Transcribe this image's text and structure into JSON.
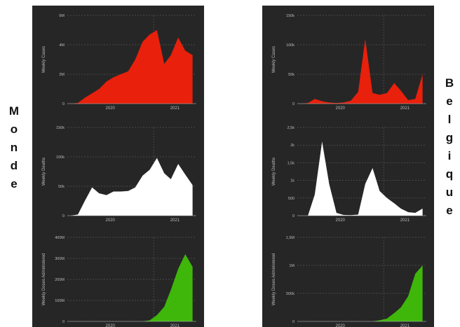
{
  "labels": {
    "left": "Monde",
    "right": "Belgique"
  },
  "colors": {
    "background": "#262626",
    "cases": "#e8200c",
    "deaths": "#ffffff",
    "doses": "#3fb60a",
    "axis_text": "#bdbdbd",
    "grid": "#6a6a6a"
  },
  "chart_data": [
    {
      "type": "area",
      "region": "Monde",
      "metric": "cases",
      "ylabel": "Weekly Cases",
      "x_ticks": [
        "2020",
        "2021"
      ],
      "y_ticks": [
        "0",
        "2M",
        "4M",
        "6M"
      ],
      "ylim": [
        0,
        6000000
      ],
      "xlim": [
        "2020-01-01",
        "2021-07-01"
      ],
      "grid": true,
      "x": [
        "2020-01-15",
        "2020-02-15",
        "2020-03-15",
        "2020-04-15",
        "2020-05-15",
        "2020-06-15",
        "2020-07-15",
        "2020-08-15",
        "2020-09-15",
        "2020-10-15",
        "2020-11-15",
        "2020-12-15",
        "2021-01-15",
        "2021-02-15",
        "2021-03-15",
        "2021-04-15",
        "2021-05-15",
        "2021-06-15"
      ],
      "values": [
        0,
        50000,
        400000,
        700000,
        1000000,
        1500000,
        1800000,
        2000000,
        2200000,
        3000000,
        4200000,
        4700000,
        5000000,
        2700000,
        3300000,
        4500000,
        3600000,
        3300000
      ]
    },
    {
      "type": "area",
      "region": "Monde",
      "metric": "deaths",
      "ylabel": "Weekly Deaths",
      "x_ticks": [
        "2020",
        "2021"
      ],
      "y_ticks": [
        "0",
        "50k",
        "100k",
        "150k"
      ],
      "ylim": [
        0,
        150000
      ],
      "xlim": [
        "2020-01-01",
        "2021-07-01"
      ],
      "grid": true,
      "x": [
        "2020-01-15",
        "2020-02-15",
        "2020-03-15",
        "2020-04-15",
        "2020-05-15",
        "2020-06-15",
        "2020-07-15",
        "2020-08-15",
        "2020-09-15",
        "2020-10-15",
        "2020-11-15",
        "2020-12-15",
        "2021-01-15",
        "2021-02-15",
        "2021-03-15",
        "2021-04-15",
        "2021-05-15",
        "2021-06-15"
      ],
      "values": [
        0,
        2000,
        25000,
        48000,
        38000,
        35000,
        41000,
        41000,
        42000,
        48000,
        68000,
        78000,
        98000,
        72000,
        62000,
        88000,
        70000,
        52000
      ]
    },
    {
      "type": "area",
      "region": "Monde",
      "metric": "doses",
      "ylabel": "Weekly Doses Administered",
      "x_ticks": [
        "2020",
        "2021"
      ],
      "y_ticks": [
        "0",
        "100M",
        "200M",
        "300M",
        "400M"
      ],
      "ylim": [
        0,
        400000000
      ],
      "xlim": [
        "2020-01-01",
        "2021-07-01"
      ],
      "grid": true,
      "x": [
        "2020-01-15",
        "2020-02-15",
        "2020-03-15",
        "2020-04-15",
        "2020-05-15",
        "2020-06-15",
        "2020-07-15",
        "2020-08-15",
        "2020-09-15",
        "2020-10-15",
        "2020-11-15",
        "2020-12-15",
        "2021-01-15",
        "2021-02-15",
        "2021-03-15",
        "2021-04-15",
        "2021-05-15",
        "2021-06-15"
      ],
      "values": [
        0,
        0,
        0,
        0,
        0,
        0,
        0,
        0,
        0,
        0,
        0,
        5000000,
        30000000,
        70000000,
        150000000,
        250000000,
        320000000,
        260000000
      ]
    },
    {
      "type": "area",
      "region": "Belgique",
      "metric": "cases",
      "ylabel": "Weekly Cases",
      "x_ticks": [
        "2020",
        "2021"
      ],
      "y_ticks": [
        "0",
        "50k",
        "100k",
        "150k"
      ],
      "ylim": [
        0,
        150000
      ],
      "xlim": [
        "2020-01-01",
        "2021-07-01"
      ],
      "grid": true,
      "x": [
        "2020-01-15",
        "2020-02-15",
        "2020-03-15",
        "2020-04-15",
        "2020-05-15",
        "2020-06-15",
        "2020-07-15",
        "2020-08-15",
        "2020-09-15",
        "2020-10-15",
        "2020-11-15",
        "2020-12-15",
        "2021-01-15",
        "2021-02-15",
        "2021-03-15",
        "2021-04-15",
        "2021-05-15",
        "2021-06-15"
      ],
      "values": [
        0,
        1000,
        8000,
        4000,
        2000,
        1000,
        2000,
        5000,
        20000,
        110000,
        18000,
        15000,
        18000,
        35000,
        22000,
        6000,
        8000,
        50000
      ]
    },
    {
      "type": "area",
      "region": "Belgique",
      "metric": "deaths",
      "ylabel": "Weekly Deaths",
      "x_ticks": [
        "2020",
        "2021"
      ],
      "y_ticks": [
        "0",
        "500",
        "1k",
        "1,5k",
        "2k",
        "2,5k"
      ],
      "ylim": [
        0,
        2500
      ],
      "xlim": [
        "2020-01-01",
        "2021-07-01"
      ],
      "grid": true,
      "x": [
        "2020-01-15",
        "2020-02-15",
        "2020-03-15",
        "2020-04-15",
        "2020-05-15",
        "2020-06-15",
        "2020-07-15",
        "2020-08-15",
        "2020-09-15",
        "2020-10-15",
        "2020-11-15",
        "2020-12-15",
        "2021-01-15",
        "2021-02-15",
        "2021-03-15",
        "2021-04-15",
        "2021-05-15",
        "2021-06-15"
      ],
      "values": [
        0,
        0,
        600,
        2100,
        900,
        80,
        20,
        15,
        30,
        900,
        1350,
        700,
        500,
        350,
        200,
        100,
        80,
        200
      ]
    },
    {
      "type": "area",
      "region": "Belgique",
      "metric": "doses",
      "ylabel": "Weekly Doses Administered",
      "x_ticks": [
        "2020",
        "2021"
      ],
      "y_ticks": [
        "0",
        "500k",
        "1M",
        "1,5M"
      ],
      "ylim": [
        0,
        1500000
      ],
      "xlim": [
        "2020-01-01",
        "2021-07-01"
      ],
      "grid": true,
      "x": [
        "2020-01-15",
        "2020-02-15",
        "2020-03-15",
        "2020-04-15",
        "2020-05-15",
        "2020-06-15",
        "2020-07-15",
        "2020-08-15",
        "2020-09-15",
        "2020-10-15",
        "2020-11-15",
        "2020-12-15",
        "2021-01-15",
        "2021-02-15",
        "2021-03-15",
        "2021-04-15",
        "2021-05-15",
        "2021-06-15"
      ],
      "values": [
        0,
        0,
        0,
        0,
        0,
        0,
        0,
        0,
        0,
        0,
        0,
        20000,
        50000,
        150000,
        250000,
        450000,
        850000,
        1000000
      ]
    }
  ]
}
